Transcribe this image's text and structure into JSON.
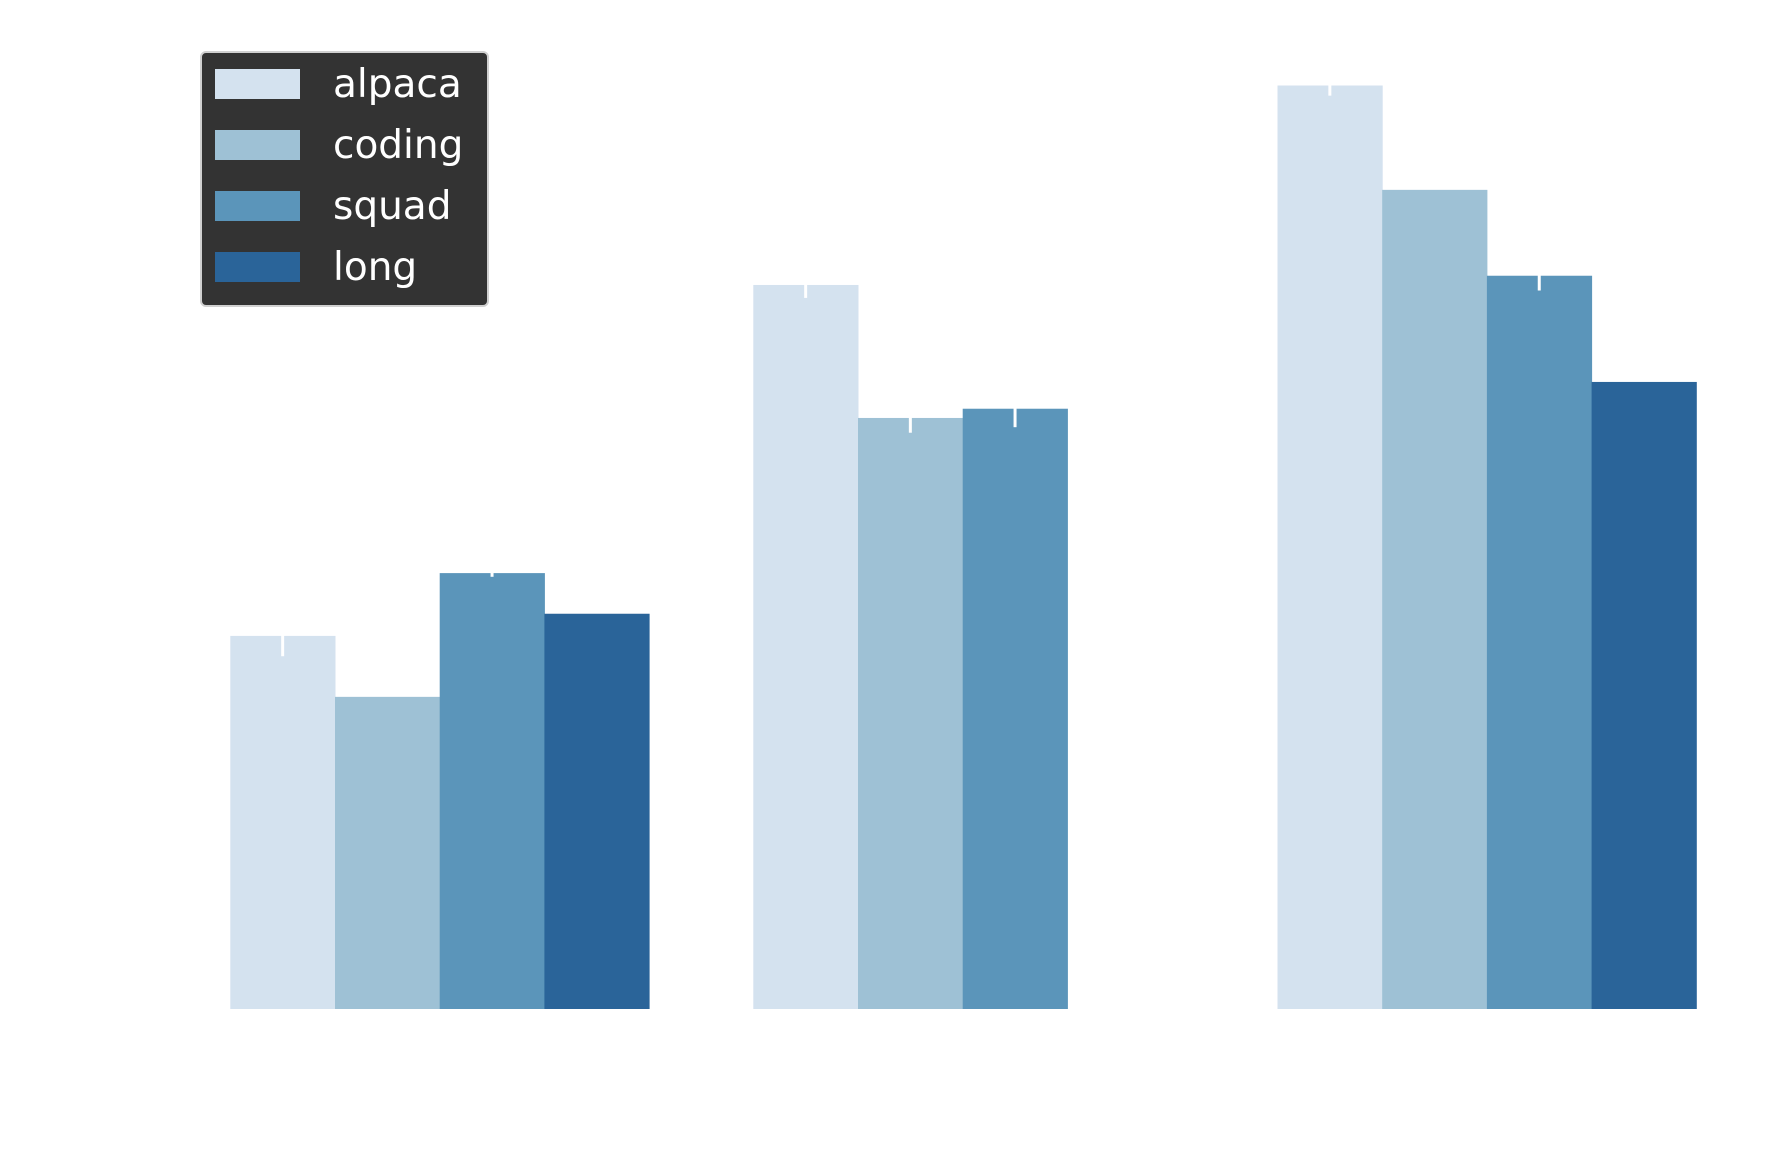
{
  "chart_data": {
    "type": "bar",
    "title": "",
    "xlabel": "",
    "ylabel": "",
    "categories": [
      "",
      "",
      ""
    ],
    "ylim": [
      0,
      1.1
    ],
    "grid": false,
    "legend_position": "top-left",
    "value_note_units": "relative height (tallest bar = 1.0); no axis ticks printed",
    "series": [
      {
        "name": "alpaca",
        "color": "#d4e2ef",
        "values": [
          0.404,
          0.784,
          1.0
        ],
        "errors": [
          0.022,
          0.014,
          0.011
        ]
      },
      {
        "name": "coding",
        "color": "#9ec1d5",
        "values": [
          0.338,
          0.64,
          0.887
        ],
        "errors": [
          0,
          0.016,
          0
        ]
      },
      {
        "name": "squad",
        "color": "#5b95ba",
        "values": [
          0.472,
          0.65,
          0.794
        ],
        "errors": [
          0.004,
          0.02,
          0.016
        ]
      },
      {
        "name": "long",
        "color": "#2a6499",
        "values": [
          0.428,
          null,
          0.679
        ],
        "errors": [
          0,
          0,
          0
        ]
      }
    ],
    "error_bar_color": "#ffffff",
    "legend_background": "#333333",
    "legend_text_color": "#ffffff"
  }
}
